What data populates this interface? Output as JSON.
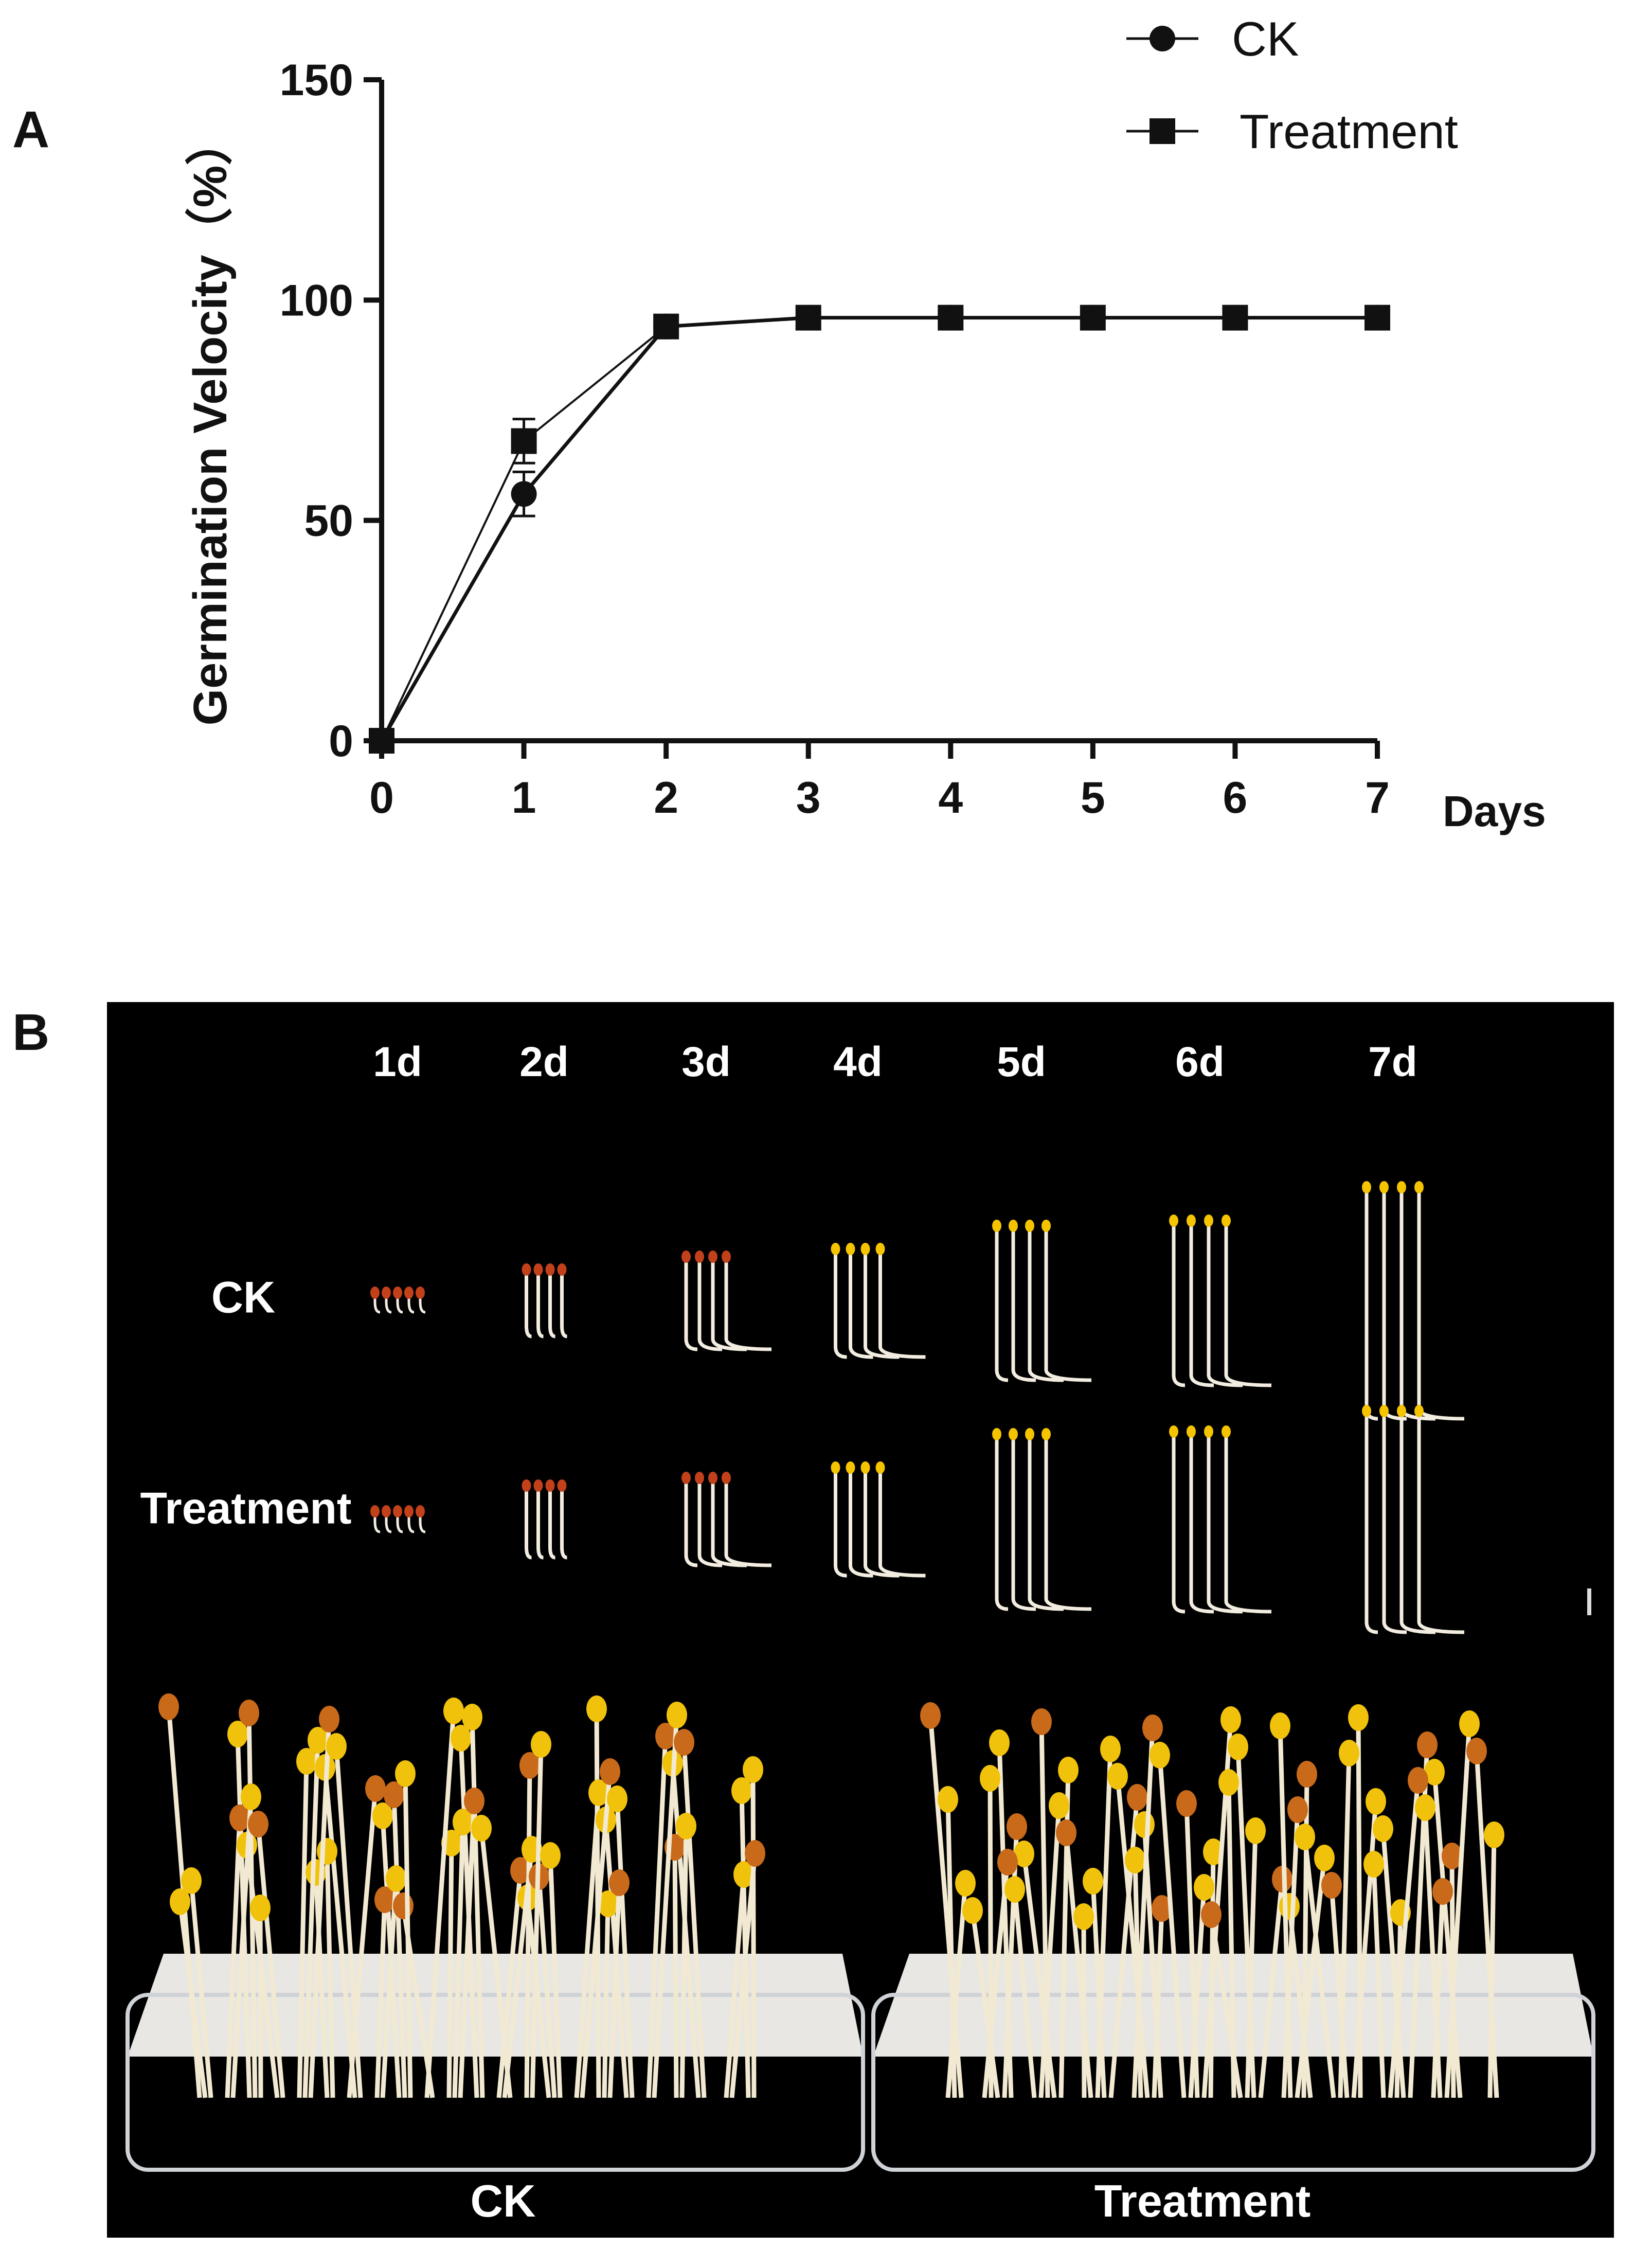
{
  "panels": {
    "a_label": "A",
    "b_label": "B"
  },
  "chart_data": {
    "type": "line",
    "title": "",
    "xlabel": "Days",
    "ylabel": "Germination Velocity（%）",
    "x": [
      0,
      1,
      2,
      3,
      4,
      5,
      6,
      7
    ],
    "xlim": [
      0,
      7
    ],
    "ylim": [
      0,
      150
    ],
    "yticks": [
      0,
      50,
      100,
      150
    ],
    "xticks": [
      0,
      1,
      2,
      3,
      4,
      5,
      6,
      7
    ],
    "grid": false,
    "legend_position": "top-right",
    "series": [
      {
        "name": "CK",
        "marker": "circle",
        "values": [
          0,
          56,
          94,
          96,
          96,
          96,
          96,
          96
        ],
        "errors": [
          0,
          5,
          1,
          0,
          0,
          0,
          0,
          0
        ]
      },
      {
        "name": "Treatment",
        "marker": "square",
        "values": [
          0,
          68,
          94,
          96,
          96,
          96,
          96,
          96
        ],
        "errors": [
          0,
          5,
          1,
          0,
          0,
          0,
          0,
          0
        ]
      }
    ]
  },
  "photo_panel": {
    "day_labels": [
      "1d",
      "2d",
      "3d",
      "4d",
      "5d",
      "6d",
      "7d"
    ],
    "row_labels": [
      "CK",
      "Treatment"
    ],
    "tray_labels": [
      "CK",
      "Treatment"
    ]
  }
}
